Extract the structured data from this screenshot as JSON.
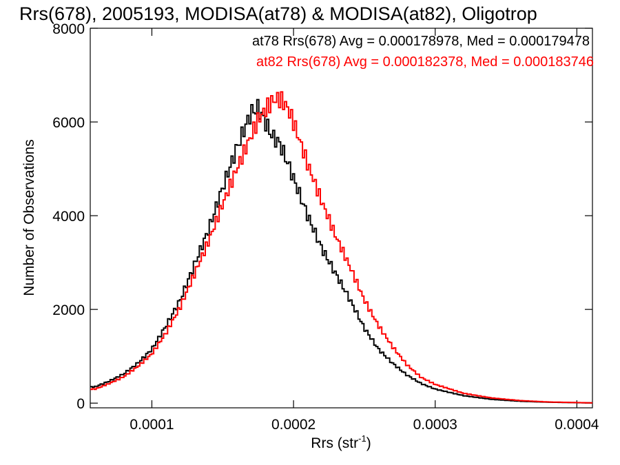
{
  "chart_data": {
    "type": "line",
    "title": "Rrs(678), 2005193, MODISA(at78) & MODISA(at82), Oligotrop",
    "xlabel_main": "Rrs (str",
    "xlabel_sup": "-1",
    "xlabel_tail": ")",
    "ylabel": "Number of Observations",
    "xlim": [
      5.65e-05,
      0.000411
    ],
    "ylim": [
      -100,
      8000
    ],
    "xticks": [
      0.0001,
      0.0002,
      0.0003,
      0.0004
    ],
    "xtick_labels": [
      "0.0001",
      "0.0002",
      "0.0003",
      "0.0004"
    ],
    "yticks": [
      0,
      2000,
      4000,
      6000,
      8000
    ],
    "ytick_labels": [
      "0",
      "2000",
      "4000",
      "6000",
      "8000"
    ],
    "legend_position": "top-right",
    "x": [
      6e-05,
      7e-05,
      8e-05,
      9e-05,
      0.0001,
      0.00011,
      0.00012,
      0.00013,
      0.00014,
      0.00015,
      0.00016,
      0.00017,
      0.000175,
      0.00018,
      0.000185,
      0.00019,
      0.000195,
      0.0002,
      0.00021,
      0.00022,
      0.00023,
      0.00024,
      0.00025,
      0.00026,
      0.00027,
      0.00028,
      0.00029,
      0.0003,
      0.00032,
      0.00034,
      0.00036,
      0.00038,
      0.0004,
      0.00041
    ],
    "series": [
      {
        "name": "at78 Rrs(678) Avg = 0.000178978, Med = 0.000179478",
        "color": "#000000",
        "values": [
          350,
          470,
          620,
          850,
          1150,
          1650,
          2200,
          2950,
          3700,
          4600,
          5450,
          6200,
          6300,
          6000,
          5700,
          5550,
          5200,
          4800,
          4000,
          3300,
          2750,
          2200,
          1600,
          1150,
          850,
          600,
          420,
          300,
          160,
          80,
          40,
          20,
          10,
          5
        ]
      },
      {
        "name": "at82 Rrs(678) Avg = 0.000182378, Med = 0.000183746",
        "color": "#ff0000",
        "values": [
          300,
          420,
          560,
          780,
          1050,
          1500,
          2050,
          2750,
          3450,
          4250,
          5000,
          5700,
          6050,
          6250,
          6450,
          6500,
          6350,
          6000,
          5100,
          4300,
          3550,
          2900,
          2200,
          1650,
          1200,
          820,
          550,
          400,
          210,
          110,
          55,
          25,
          12,
          6
        ]
      }
    ]
  }
}
